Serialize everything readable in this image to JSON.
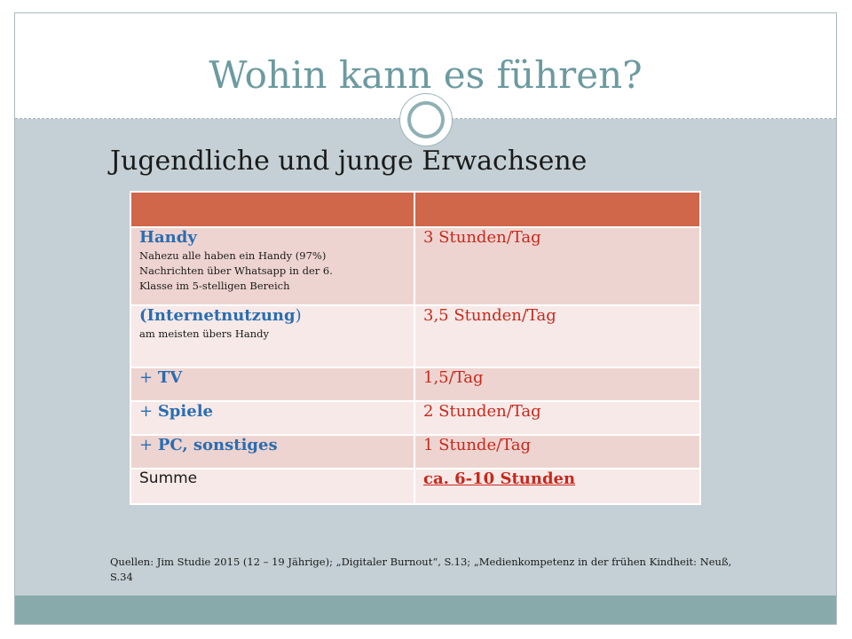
{
  "slide": {
    "title": "Wohin kann es führen?",
    "subtitle": "Jugendliche und junge Erwachsene"
  },
  "table": {
    "rows": [
      {
        "label": "Handy",
        "notes": [
          "Nahezu alle haben ein Handy (97%)",
          "Nachrichten über Whatsapp in der 6.",
          "Klasse im 5-stelligen Bereich"
        ],
        "value": "3 Stunden/Tag"
      },
      {
        "label_main": "(Internetnutzung",
        "label_close": ")",
        "notes": [
          "am meisten übers Handy"
        ],
        "value": "3,5 Stunden/Tag"
      },
      {
        "label_prefix": "+ ",
        "label": "TV",
        "value": "1,5/Tag"
      },
      {
        "label_prefix": "+ ",
        "label": "Spiele",
        "value": "2 Stunden/Tag"
      },
      {
        "label_prefix": "+ ",
        "label": "PC, sonstiges",
        "value": "1 Stunde/Tag"
      },
      {
        "label": "Summe",
        "value": "ca. 6-10 Stunden"
      }
    ]
  },
  "sources": "Quellen: Jim Studie 2015 (12 – 19 Jährige); „Digitaler Burnout“, S.13; „Medienkompetenz in der frühen Kindheit: Neuß, S.34",
  "colors": {
    "title": "#6c9aa0",
    "header_row": "#d0664a",
    "row_dark": "#eed4d0",
    "row_light": "#f6e9e7",
    "label_blue": "#2a6db2",
    "value_red": "#c8281c",
    "content_bg": "#c4d0d5",
    "footer_bar": "#88aaab"
  }
}
